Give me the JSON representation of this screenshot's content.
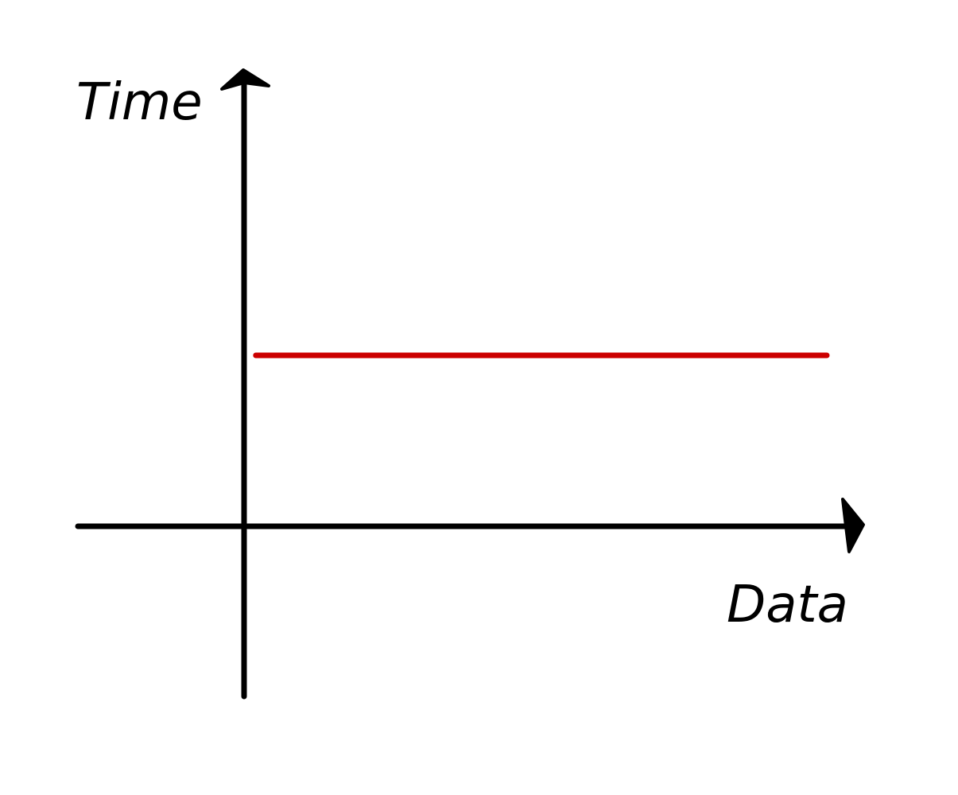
{
  "chart_data": {
    "type": "line",
    "title": "",
    "xlabel": "Data",
    "ylabel": "Time",
    "grid": false,
    "x": [
      0,
      1
    ],
    "series": [
      {
        "color": "#cc0000",
        "values": [
          1,
          1
        ]
      }
    ],
    "xlim": [
      -0.29,
      1.0
    ],
    "ylim": [
      0,
      2
    ]
  },
  "colors": {
    "axis": "#000000",
    "series": "#cc0000",
    "background": "#ffffff"
  }
}
